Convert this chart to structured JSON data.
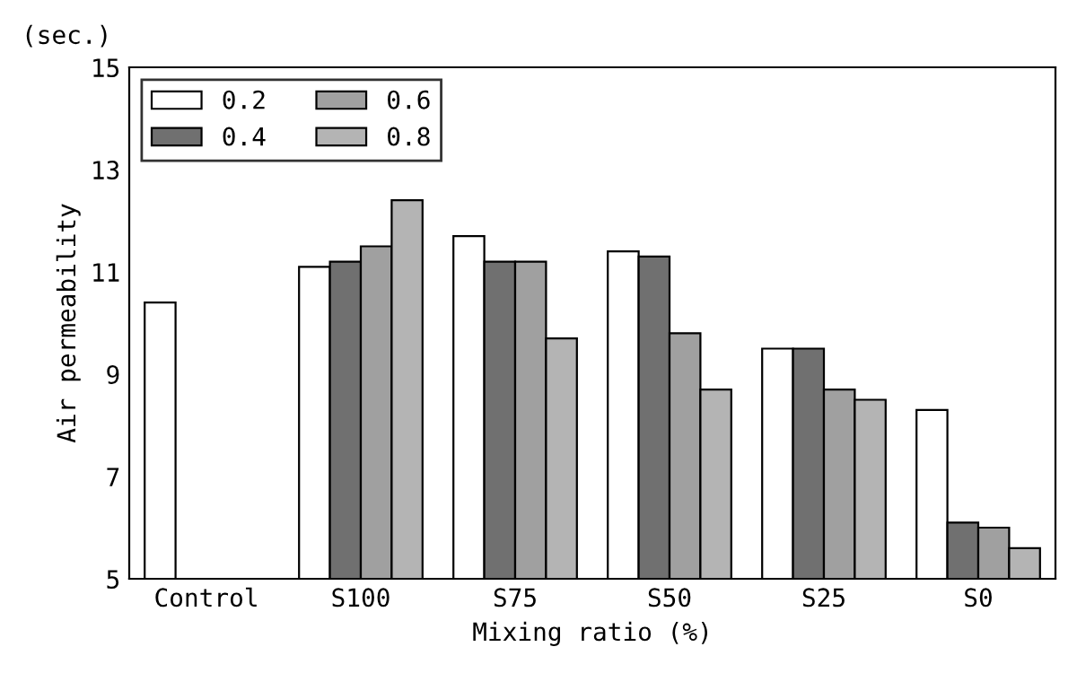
{
  "chart_data": {
    "type": "bar",
    "xlabel": "Mixing ratio (%)",
    "ylabel": "Air permeability",
    "annotations": [
      "(sec.)"
    ],
    "categories": [
      "Control",
      "S100",
      "S75",
      "S50",
      "S25",
      "S0"
    ],
    "series": [
      {
        "name": "0.2",
        "color": "#ffffff",
        "values": [
          10.4,
          11.1,
          11.7,
          11.4,
          9.5,
          8.3
        ]
      },
      {
        "name": "0.4",
        "color": "#707070",
        "values": [
          null,
          11.2,
          11.2,
          11.3,
          9.5,
          6.1
        ]
      },
      {
        "name": "0.6",
        "color": "#a0a0a0",
        "values": [
          null,
          11.5,
          11.2,
          9.8,
          8.7,
          6.0
        ]
      },
      {
        "name": "0.8",
        "color": "#b4b4b4",
        "values": [
          null,
          12.4,
          9.7,
          8.7,
          8.5,
          5.6
        ]
      }
    ],
    "ylim": [
      5,
      15
    ],
    "yticks": [
      5,
      7,
      9,
      11,
      13,
      15
    ],
    "grid": false,
    "legend": "top left"
  }
}
